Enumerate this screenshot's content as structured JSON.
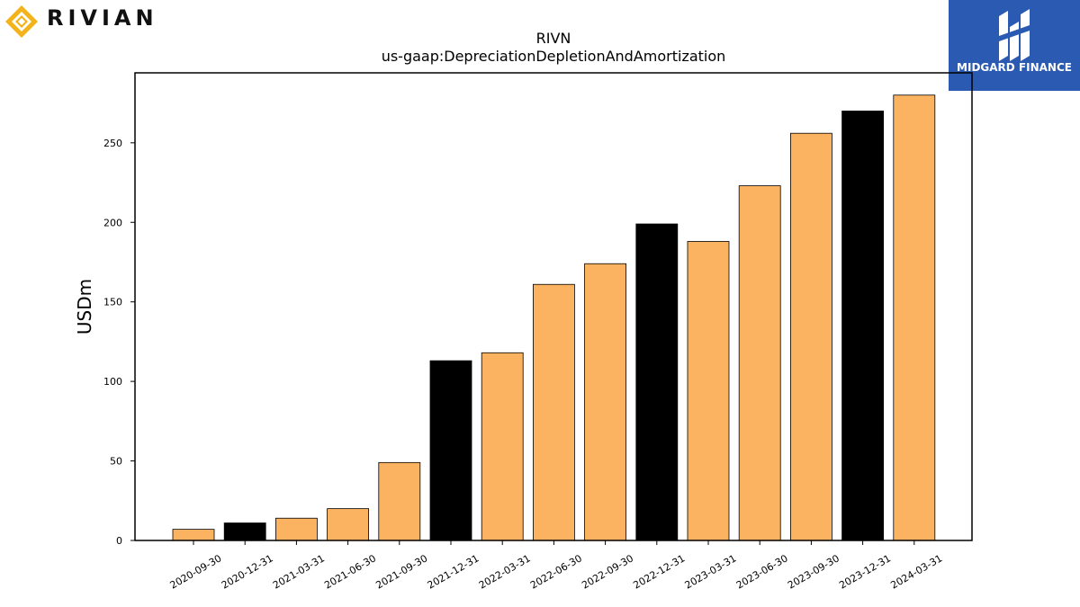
{
  "logos": {
    "left": {
      "text": "RIVIAN",
      "icon": "rivian-diamond-icon",
      "color": "#f2b41a"
    },
    "right": {
      "text": "MIDGARD FINANCE",
      "icon": "midgard-mark-icon",
      "background": "#2a5ab1"
    }
  },
  "colors": {
    "bar": "#fbb361",
    "highlight": "#000000",
    "edge": "#000000"
  },
  "chart_data": {
    "type": "bar",
    "title": "RIVN",
    "subtitle": "us-gaap:DepreciationDepletionAndAmortization",
    "xlabel": "",
    "ylabel": "USDm",
    "ylim": [
      0,
      294
    ],
    "yticks": [
      0,
      50,
      100,
      150,
      200,
      250
    ],
    "grid": false,
    "categories": [
      "2020-09-30",
      "2020-12-31",
      "2021-03-31",
      "2021-06-30",
      "2021-09-30",
      "2021-12-31",
      "2022-03-31",
      "2022-06-30",
      "2022-09-30",
      "2022-12-31",
      "2023-03-31",
      "2023-06-30",
      "2023-09-30",
      "2023-12-31",
      "2024-03-31"
    ],
    "values": [
      7,
      11,
      14,
      20,
      49,
      113,
      118,
      161,
      174,
      199,
      188,
      223,
      256,
      270,
      280
    ],
    "highlighted": [
      false,
      true,
      false,
      false,
      false,
      true,
      false,
      false,
      false,
      true,
      false,
      false,
      false,
      true,
      false
    ]
  }
}
